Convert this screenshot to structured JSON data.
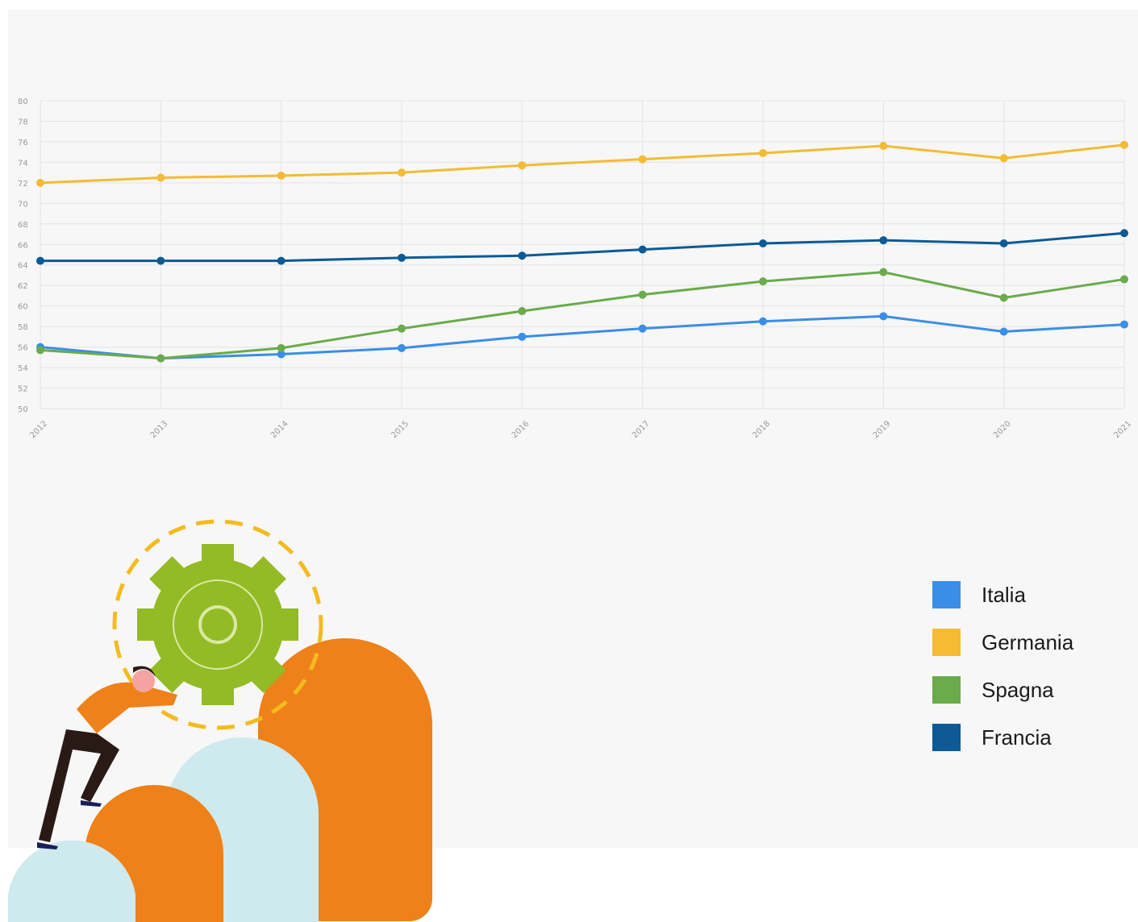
{
  "chart_data": {
    "type": "line",
    "categories": [
      "2012",
      "2013",
      "2014",
      "2015",
      "2016",
      "2017",
      "2018",
      "2019",
      "2020",
      "2021"
    ],
    "series": [
      {
        "name": "Italia",
        "color": "#3a8ee6",
        "values": [
          56.0,
          54.9,
          55.3,
          55.9,
          57.0,
          57.8,
          58.5,
          59.0,
          57.5,
          58.2
        ]
      },
      {
        "name": "Germania",
        "color": "#f4bb33",
        "values": [
          72.0,
          72.5,
          72.7,
          73.0,
          73.7,
          74.3,
          74.9,
          75.6,
          74.4,
          75.7
        ]
      },
      {
        "name": "Spagna",
        "color": "#6aab4c",
        "values": [
          55.7,
          54.9,
          55.9,
          57.8,
          59.5,
          61.1,
          62.4,
          63.3,
          60.8,
          62.6
        ]
      },
      {
        "name": "Francia",
        "color": "#0d5a96",
        "values": [
          64.4,
          64.4,
          64.4,
          64.7,
          64.9,
          65.5,
          66.1,
          66.4,
          66.1,
          67.1
        ]
      }
    ],
    "ylim": [
      50,
      80
    ],
    "yticks": [
      50,
      52,
      54,
      56,
      58,
      60,
      62,
      64,
      66,
      68,
      70,
      72,
      74,
      76,
      78,
      80
    ],
    "grid": true
  }
}
